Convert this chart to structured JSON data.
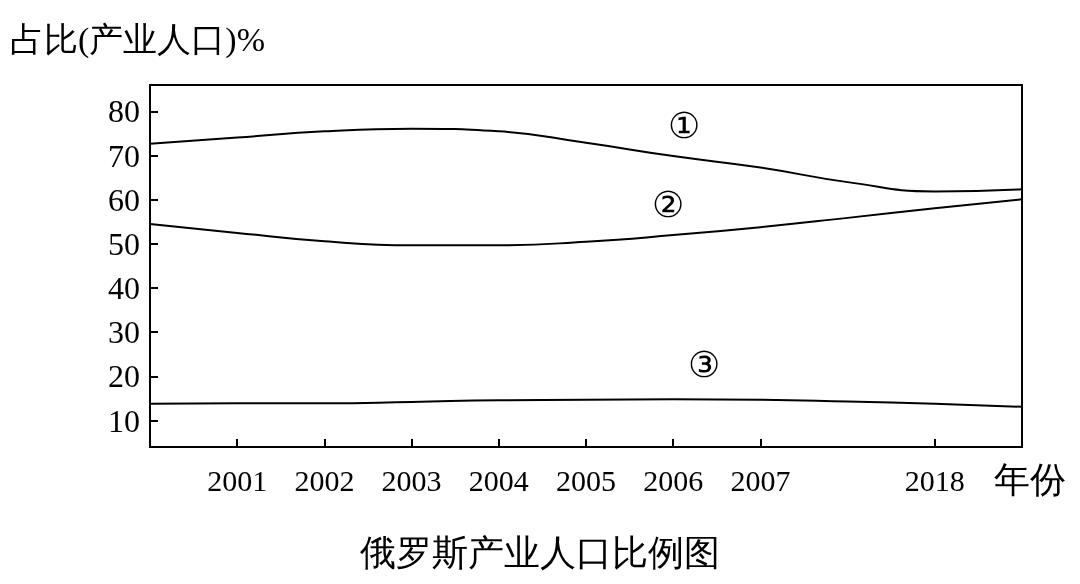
{
  "chart_data": {
    "type": "line",
    "title": "俄罗斯产业人口比例图",
    "ylabel": "占比(产业人口)%",
    "xlabel": "年份",
    "categories": [
      null,
      "2001",
      "2002",
      "2003",
      "2004",
      "2005",
      "2006",
      "2007",
      null,
      "2018",
      null
    ],
    "ylim": [
      4,
      86
    ],
    "yticks": [
      10,
      20,
      30,
      40,
      50,
      60,
      70,
      80
    ],
    "grid": false,
    "marker": "none",
    "line_style": "solid",
    "series": [
      {
        "color": "#000000",
        "values": [
          72.7,
          74.1,
          75.5,
          76.1,
          75.5,
          72.9,
          69.9,
          67.3,
          64,
          61.9,
          62.4
        ]
      },
      {
        "color": "#000000",
        "values": [
          54.5,
          52.5,
          50.6,
          49.7,
          49.7,
          50.5,
          52,
          53.8,
          55.9,
          58.1,
          60.1
        ]
      },
      {
        "color": "#000000",
        "values": [
          13.8,
          13.9,
          13.9,
          14.2,
          14.6,
          14.7,
          14.8,
          14.7,
          14.3,
          13.8,
          13.1
        ]
      }
    ],
    "annotations": [
      "①",
      "②",
      "③"
    ]
  }
}
